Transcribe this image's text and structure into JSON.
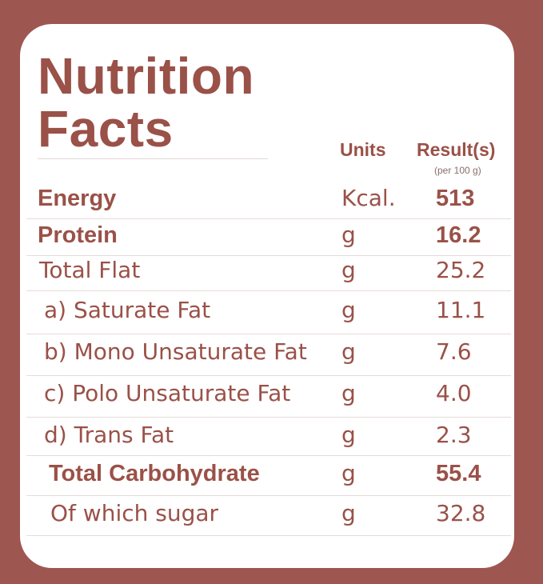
{
  "title_line1": "Nutrition",
  "title_line2": "Facts",
  "headers": {
    "units": "Units",
    "result": "Result(s)",
    "result_sub": "(per 100 g)"
  },
  "rows": [
    {
      "name": "Energy",
      "unit": "Kcal.",
      "value": "513",
      "bold": true
    },
    {
      "name": "Protein",
      "unit": "g",
      "value": "16.2",
      "bold": true
    },
    {
      "name": "Total Flat",
      "unit": "g",
      "value": "25.2",
      "bold": false
    },
    {
      "name": "a) Saturate Fat",
      "unit": "g",
      "value": "11.1",
      "bold": false
    },
    {
      "name": "b) Mono Unsaturate Fat",
      "unit": "g",
      "value": "7.6",
      "bold": false
    },
    {
      "name": "c) Polo Unsaturate Fat",
      "unit": "g",
      "value": "4.0",
      "bold": false
    },
    {
      "name": "d) Trans Fat",
      "unit": "g",
      "value": "2.3",
      "bold": false
    },
    {
      "name": "Total Carbohydrate",
      "unit": "g",
      "value": "55.4",
      "bold": true
    },
    {
      "name": "Of which sugar",
      "unit": "g",
      "value": "32.8",
      "bold": false
    }
  ],
  "colors": {
    "frame": "#9e5650",
    "card": "#ffffff",
    "text": "#9a5148"
  }
}
